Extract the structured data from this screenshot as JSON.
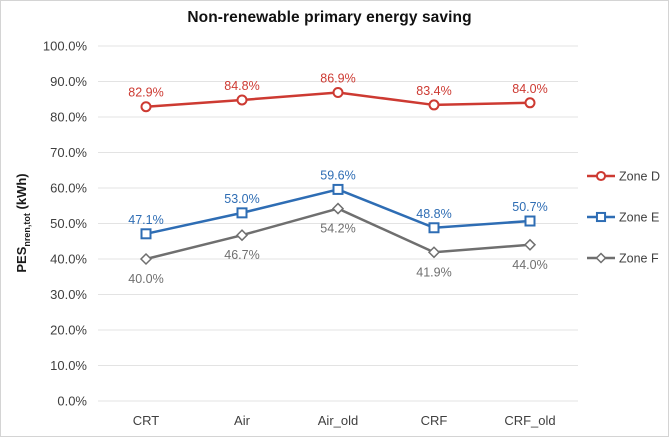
{
  "title": "Non-renewable primary energy saving",
  "y_axis_title": {
    "main": "PES",
    "sub": "nren,tot",
    "unit": " (kWh)"
  },
  "chart_data": {
    "type": "line",
    "title": "Non-renewable primary energy saving",
    "categories": [
      "CRT",
      "Air",
      "Air_old",
      "CRF",
      "CRF_old"
    ],
    "series": [
      {
        "name": "Zone D",
        "color": "#cd3a32",
        "marker": "circle",
        "values": [
          82.9,
          84.8,
          86.9,
          83.4,
          84.0
        ],
        "data_labels": [
          "82.9%",
          "84.8%",
          "86.9%",
          "83.4%",
          "84.0%"
        ],
        "label_side": "above"
      },
      {
        "name": "Zone E",
        "color": "#2e6db4",
        "marker": "square",
        "values": [
          47.1,
          53.0,
          59.6,
          48.8,
          50.7
        ],
        "data_labels": [
          "47.1%",
          "53.0%",
          "59.6%",
          "48.8%",
          "50.7%"
        ],
        "label_side": "above"
      },
      {
        "name": "Zone F",
        "color": "#6f6f6f",
        "marker": "diamond",
        "values": [
          40.0,
          46.7,
          54.2,
          41.9,
          44.0
        ],
        "data_labels": [
          "40.0%",
          "46.7%",
          "54.2%",
          "41.9%",
          "44.0%"
        ],
        "label_side": "below"
      }
    ],
    "ylabel": "PES_nren,tot (kWh)",
    "xlabel": "",
    "ylim": [
      0,
      100
    ],
    "y_ticks": [
      "0.0%",
      "10.0%",
      "20.0%",
      "30.0%",
      "40.0%",
      "50.0%",
      "60.0%",
      "70.0%",
      "80.0%",
      "90.0%",
      "100.0%"
    ],
    "grid": true,
    "gridline_color": "#e3e3e3",
    "legend_position": "right",
    "legend_entries": [
      "Zone D",
      "Zone E",
      "Zone F"
    ]
  }
}
